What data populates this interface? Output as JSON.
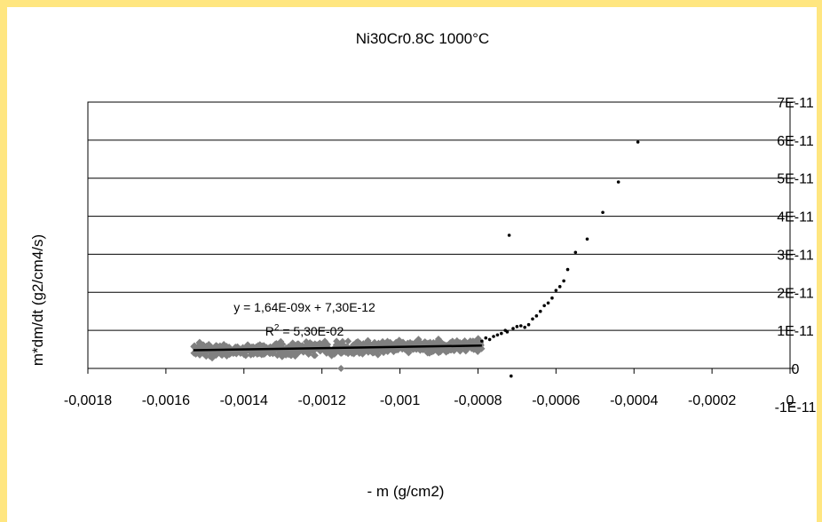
{
  "chart_data": {
    "type": "scatter",
    "title": "Ni30Cr0.8C 1000°C",
    "xlabel": "- m (g/cm2)",
    "ylabel": "m*dm/dt  (g2/cm4/s)",
    "xlim": [
      -0.0018,
      0
    ],
    "ylim": [
      -1e-11,
      7e-11
    ],
    "x_ticks": [
      "-0,0018",
      "-0,0016",
      "-0,0014",
      "-0,0012",
      "-0,001",
      "-0,0008",
      "-0,0006",
      "-0,0004",
      "-0,0002",
      "0"
    ],
    "x_tick_values": [
      -0.0018,
      -0.0016,
      -0.0014,
      -0.0012,
      -0.001,
      -0.0008,
      -0.0006,
      -0.0004,
      -0.0002,
      0
    ],
    "y_ticks": [
      "-1E-11",
      "0",
      "1E-11",
      "2E-11",
      "3E-11",
      "4E-11",
      "5E-11",
      "6E-11",
      "7E-11"
    ],
    "y_tick_values": [
      -1e-11,
      0,
      1e-11,
      2e-11,
      3e-11,
      4e-11,
      5e-11,
      6e-11,
      7e-11
    ],
    "grid": "horizontal",
    "series": [
      {
        "marker": "diamond",
        "color": "#808080",
        "x_range": [
          -0.00153,
          -0.00079
        ],
        "y_center_start": 4.6e-12,
        "y_center_end": 6e-12,
        "y_spread": 1.2e-12,
        "count": 700
      },
      {
        "marker": "point",
        "color": "#000000",
        "points": [
          [
            -0.00079,
            7.2e-12
          ],
          [
            -0.00078,
            8e-12
          ],
          [
            -0.00077,
            7.6e-12
          ],
          [
            -0.00076,
            8.4e-12
          ],
          [
            -0.00075,
            8.8e-12
          ],
          [
            -0.00074,
            9.2e-12
          ],
          [
            -0.00073,
            1e-11
          ],
          [
            -0.000725,
            9.6e-12
          ],
          [
            -0.00072,
            3.5e-11
          ],
          [
            -0.000715,
            -2e-12
          ],
          [
            -0.00071,
            1.05e-11
          ],
          [
            -0.0007,
            1.1e-11
          ],
          [
            -0.00069,
            1.12e-11
          ],
          [
            -0.00068,
            1.08e-11
          ],
          [
            -0.00067,
            1.15e-11
          ],
          [
            -0.00066,
            1.3e-11
          ],
          [
            -0.00065,
            1.38e-11
          ],
          [
            -0.00064,
            1.5e-11
          ],
          [
            -0.00063,
            1.65e-11
          ],
          [
            -0.00062,
            1.72e-11
          ],
          [
            -0.00061,
            1.85e-11
          ],
          [
            -0.0006,
            2.05e-11
          ],
          [
            -0.00059,
            2.15e-11
          ],
          [
            -0.00058,
            2.3e-11
          ],
          [
            -0.00057,
            2.6e-11
          ],
          [
            -0.00055,
            3.05e-11
          ],
          [
            -0.00052,
            3.4e-11
          ],
          [
            -0.00048,
            4.1e-11
          ],
          [
            -0.00044,
            4.9e-11
          ],
          [
            -0.00039,
            5.95e-11
          ]
        ]
      }
    ],
    "trendline": {
      "equation": "y = 1,64E-09x + 7,30E-12",
      "r2_label": "R",
      "r2_sup": "2",
      "r2_value": " = 5,30E-02",
      "slope": 1.64e-09,
      "intercept": 7.3e-12,
      "x_range": [
        -0.00153,
        -0.00079
      ],
      "color": "#000000"
    }
  }
}
